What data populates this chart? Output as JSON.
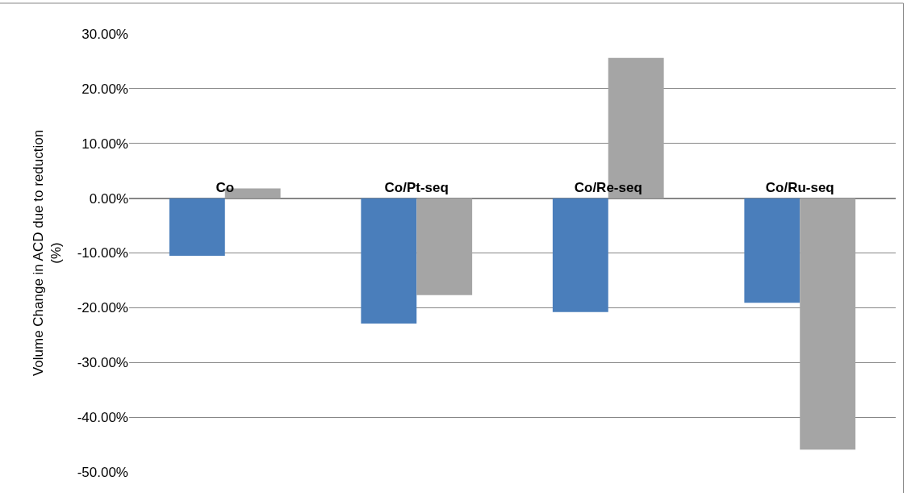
{
  "chart_data": {
    "type": "bar",
    "ylabel": "Volume Change in ACD due to reduction (%)",
    "categories": [
      "Co",
      "Co/Pt-seq",
      "Co/Re-seq",
      "Co/Ru-seq"
    ],
    "series": [
      {
        "color": "#4a7ebb",
        "values": [
          -10.5,
          -22.9,
          -20.8,
          -19.1
        ]
      },
      {
        "color": "#a5a5a5",
        "values": [
          1.8,
          -17.7,
          25.6,
          -45.9
        ]
      }
    ],
    "ylim": [
      -50,
      30
    ],
    "yticks": [
      {
        "value": -50,
        "label": "-50.00%"
      },
      {
        "value": -40,
        "label": "-40.00%"
      },
      {
        "value": -30,
        "label": "-30.00%"
      },
      {
        "value": -20,
        "label": "-20.00%"
      },
      {
        "value": -10,
        "label": "-10.00%"
      },
      {
        "value": 0,
        "label": "0.00%"
      },
      {
        "value": 10,
        "label": "10.00%"
      },
      {
        "value": 20,
        "label": "20.00%"
      },
      {
        "value": 30,
        "label": "30.00%"
      }
    ],
    "grid": "y"
  }
}
